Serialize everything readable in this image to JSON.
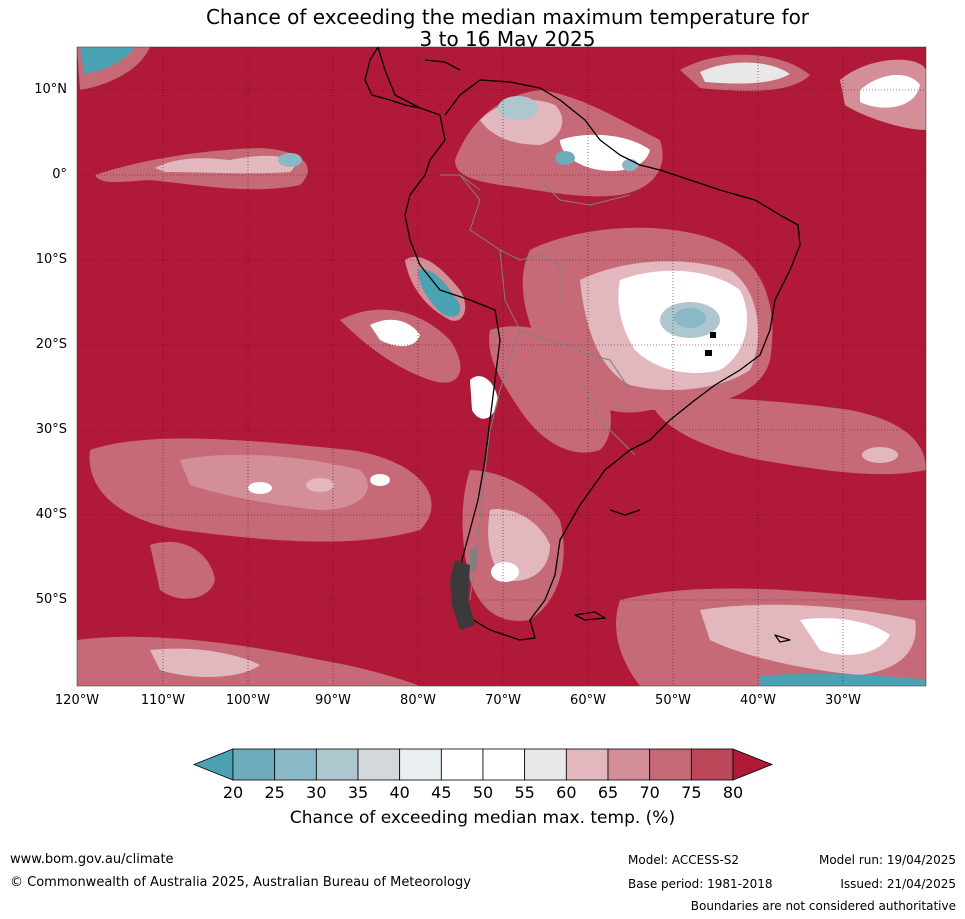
{
  "title": {
    "line1": "Chance of exceeding the median maximum temperature for",
    "line2": "3 to 16 May 2025"
  },
  "map": {
    "region": "South America",
    "lat_labels": [
      "10°N",
      "0°",
      "10°S",
      "20°S",
      "30°S",
      "40°S",
      "50°S"
    ],
    "lon_labels": [
      "120°W",
      "110°W",
      "100°W",
      "90°W",
      "80°W",
      "70°W",
      "60°W",
      "50°W",
      "40°W",
      "30°W"
    ],
    "dominant_color": "#b01a38",
    "coastline_color": "#000000",
    "border_color": "#808080"
  },
  "colorbar": {
    "ticks": [
      "20",
      "25",
      "30",
      "35",
      "40",
      "45",
      "50",
      "55",
      "60",
      "65",
      "70",
      "75",
      "80"
    ],
    "colors": [
      "#4aa2b2",
      "#6eacbb",
      "#8bb8c6",
      "#adc7cf",
      "#d2d8db",
      "#e9eef1",
      "#ffffff",
      "#ffffff",
      "#e9e8e9",
      "#e2b8be",
      "#d38e98",
      "#c66a77",
      "#bc4758",
      "#b01a38"
    ],
    "label": "Chance of exceeding median max. temp. (%)"
  },
  "footer": {
    "website": "www.bom.gov.au/climate",
    "copyright": "© Commonwealth of Australia 2025, Australian Bureau of Meteorology",
    "model": "Model: ACCESS-S2",
    "base_period": "Base period: 1981-2018",
    "model_run": "Model run: 19/04/2025",
    "issued": "Issued: 21/04/2025",
    "disclaimer": "Boundaries are not considered authoritative"
  }
}
